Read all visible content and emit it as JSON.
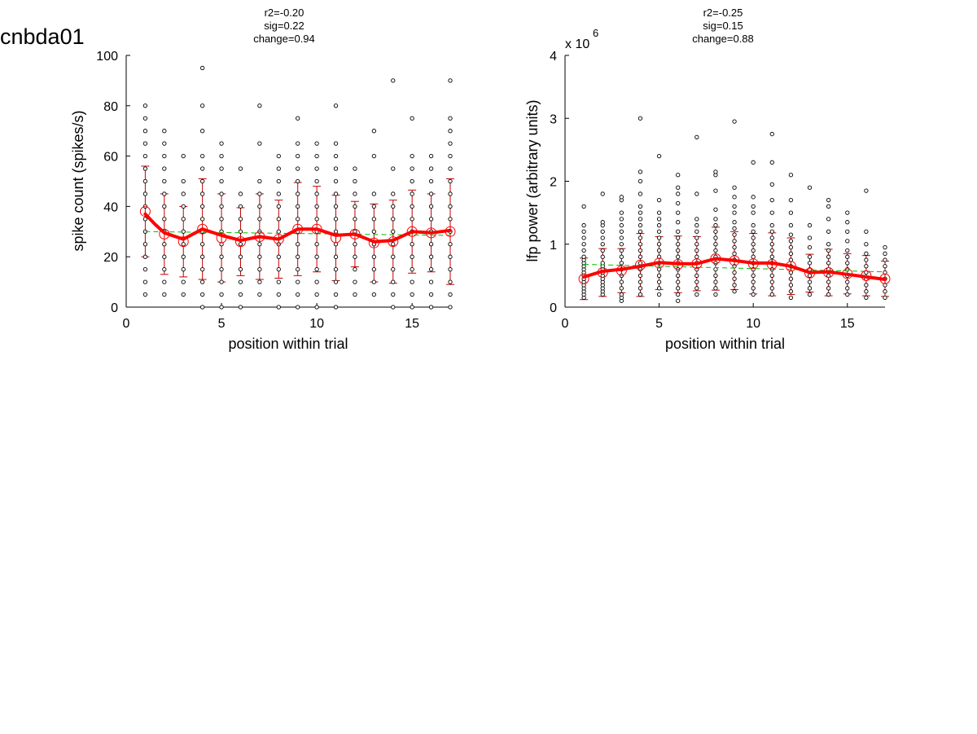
{
  "page": {
    "title": "cnbda01"
  },
  "chart_data": [
    {
      "type": "scatter",
      "stats": [
        "r2=-0.20",
        "sig=0.22",
        "change=0.94"
      ],
      "xlabel": "position within trial",
      "ylabel": "spike count (spikes/s)",
      "xlim": [
        0,
        17
      ],
      "ylim": [
        0,
        100
      ],
      "x_ticks": [
        0,
        5,
        10,
        15
      ],
      "y_ticks": [
        0,
        20,
        40,
        60,
        80,
        100
      ],
      "scale_exponent": "",
      "colors": {
        "points": "#000000",
        "mean": "#ff0000",
        "errorbar": "#c00000",
        "fit": "#00bb00"
      },
      "positions": [
        1,
        2,
        3,
        4,
        5,
        6,
        7,
        8,
        9,
        10,
        11,
        12,
        13,
        14,
        15,
        16,
        17
      ],
      "points": [
        [
          5,
          10,
          15,
          20,
          25,
          30,
          35,
          40,
          45,
          50,
          55,
          60,
          65,
          70,
          75,
          80
        ],
        [
          5,
          10,
          15,
          20,
          25,
          30,
          35,
          40,
          45,
          50,
          55,
          60,
          65,
          70
        ],
        [
          5,
          10,
          15,
          20,
          25,
          30,
          35,
          40,
          45,
          50,
          60
        ],
        [
          0,
          5,
          10,
          15,
          20,
          25,
          30,
          35,
          40,
          45,
          50,
          55,
          60,
          70,
          80,
          95
        ],
        [
          0,
          5,
          10,
          15,
          20,
          25,
          30,
          35,
          40,
          45,
          50,
          55,
          60,
          65
        ],
        [
          0,
          5,
          10,
          15,
          20,
          25,
          30,
          35,
          40,
          45,
          55
        ],
        [
          5,
          10,
          15,
          20,
          25,
          30,
          35,
          40,
          45,
          50,
          65,
          80
        ],
        [
          0,
          5,
          10,
          15,
          20,
          25,
          30,
          35,
          40,
          45,
          50,
          55,
          60
        ],
        [
          0,
          5,
          10,
          15,
          20,
          25,
          30,
          35,
          40,
          45,
          50,
          55,
          60,
          65,
          75
        ],
        [
          0,
          5,
          10,
          15,
          20,
          25,
          30,
          35,
          40,
          45,
          50,
          55,
          60,
          65
        ],
        [
          0,
          5,
          10,
          15,
          20,
          25,
          30,
          35,
          40,
          45,
          50,
          55,
          60,
          65,
          80
        ],
        [
          5,
          10,
          15,
          20,
          25,
          30,
          35,
          40,
          45,
          50,
          55
        ],
        [
          5,
          10,
          15,
          20,
          25,
          30,
          35,
          40,
          45,
          60,
          70
        ],
        [
          0,
          5,
          10,
          15,
          20,
          25,
          30,
          35,
          40,
          45,
          55,
          90
        ],
        [
          0,
          5,
          10,
          15,
          20,
          25,
          30,
          35,
          40,
          45,
          50,
          55,
          60,
          75
        ],
        [
          0,
          5,
          10,
          15,
          20,
          25,
          30,
          35,
          40,
          45,
          50,
          55,
          60
        ],
        [
          0,
          5,
          10,
          15,
          20,
          25,
          30,
          35,
          40,
          45,
          50,
          55,
          60,
          65,
          70,
          75,
          90
        ]
      ],
      "means": [
        38,
        29,
        26,
        31,
        27.5,
        26,
        28,
        27,
        31,
        31,
        27.5,
        29,
        25.5,
        26,
        30,
        29.5,
        30
      ],
      "errors": [
        18,
        16,
        14,
        20,
        17.5,
        13.5,
        17,
        15.5,
        18.5,
        17,
        17,
        13,
        15.5,
        16.5,
        16.5,
        15.5,
        21
      ],
      "smooth": [
        [
          1,
          37
        ],
        [
          1.5,
          33
        ],
        [
          2,
          29.5
        ],
        [
          3,
          27
        ],
        [
          4,
          31
        ],
        [
          5,
          28.5
        ],
        [
          6,
          26.5
        ],
        [
          7,
          28
        ],
        [
          8,
          27
        ],
        [
          9,
          31
        ],
        [
          10,
          31
        ],
        [
          11,
          28.5
        ],
        [
          12,
          29
        ],
        [
          13,
          26
        ],
        [
          14,
          26.5
        ],
        [
          15,
          30
        ],
        [
          16,
          29.5
        ],
        [
          17,
          30.5
        ]
      ],
      "fit": {
        "x": [
          1,
          17
        ],
        "y": [
          30,
          28.5
        ]
      }
    },
    {
      "type": "scatter",
      "stats": [
        "r2=-0.25",
        "sig=0.15",
        "change=0.88"
      ],
      "xlabel": "position within trial",
      "ylabel": "lfp power (arbitrary units)",
      "xlim": [
        0,
        17
      ],
      "ylim": [
        0,
        4
      ],
      "x_ticks": [
        0,
        5,
        10,
        15
      ],
      "y_ticks": [
        0,
        1,
        2,
        3,
        4
      ],
      "scale_exponent": "6",
      "scale_prefix": "x 10",
      "colors": {
        "points": "#000000",
        "mean": "#ff0000",
        "errorbar": "#c00000",
        "fit": "#00bb00"
      },
      "positions": [
        1,
        2,
        3,
        4,
        5,
        6,
        7,
        8,
        9,
        10,
        11,
        12,
        13,
        14,
        15,
        16,
        17
      ],
      "points": [
        [
          0.15,
          0.2,
          0.25,
          0.3,
          0.35,
          0.4,
          0.45,
          0.5,
          0.55,
          0.6,
          0.65,
          0.7,
          0.75,
          0.8,
          0.9,
          1.0,
          1.1,
          1.2,
          1.3,
          1.6
        ],
        [
          0.2,
          0.25,
          0.3,
          0.35,
          0.4,
          0.45,
          0.5,
          0.55,
          0.6,
          0.65,
          0.7,
          0.8,
          0.9,
          1.0,
          1.1,
          1.2,
          1.3,
          1.35,
          1.8
        ],
        [
          0.1,
          0.15,
          0.2,
          0.3,
          0.4,
          0.5,
          0.6,
          0.7,
          0.8,
          0.9,
          1.0,
          1.1,
          1.2,
          1.3,
          1.4,
          1.5,
          1.7,
          1.75
        ],
        [
          0.2,
          0.3,
          0.4,
          0.5,
          0.6,
          0.7,
          0.8,
          0.9,
          1.0,
          1.1,
          1.2,
          1.3,
          1.4,
          1.5,
          1.6,
          1.8,
          2.0,
          2.15,
          3.0
        ],
        [
          0.2,
          0.3,
          0.4,
          0.5,
          0.6,
          0.7,
          0.8,
          0.9,
          1.0,
          1.1,
          1.2,
          1.3,
          1.4,
          1.5,
          1.7,
          2.4
        ],
        [
          0.1,
          0.2,
          0.3,
          0.4,
          0.5,
          0.6,
          0.7,
          0.8,
          0.9,
          1.0,
          1.1,
          1.2,
          1.35,
          1.5,
          1.65,
          1.8,
          1.9,
          2.1
        ],
        [
          0.2,
          0.3,
          0.4,
          0.5,
          0.6,
          0.7,
          0.8,
          0.9,
          1.0,
          1.1,
          1.2,
          1.3,
          1.4,
          1.8,
          2.7
        ],
        [
          0.2,
          0.3,
          0.4,
          0.5,
          0.6,
          0.7,
          0.8,
          0.9,
          1.0,
          1.1,
          1.2,
          1.3,
          1.4,
          1.55,
          1.85,
          2.1,
          2.15
        ],
        [
          0.25,
          0.35,
          0.45,
          0.55,
          0.65,
          0.75,
          0.85,
          0.95,
          1.05,
          1.15,
          1.25,
          1.35,
          1.5,
          1.6,
          1.75,
          1.9,
          2.95
        ],
        [
          0.2,
          0.3,
          0.4,
          0.5,
          0.6,
          0.7,
          0.8,
          0.9,
          1.0,
          1.1,
          1.2,
          1.3,
          1.5,
          1.6,
          1.75,
          2.3
        ],
        [
          0.2,
          0.3,
          0.4,
          0.5,
          0.6,
          0.7,
          0.8,
          0.9,
          1.0,
          1.1,
          1.2,
          1.3,
          1.5,
          1.7,
          1.95,
          2.3,
          2.75
        ],
        [
          0.15,
          0.25,
          0.35,
          0.45,
          0.55,
          0.65,
          0.75,
          0.85,
          0.95,
          1.05,
          1.15,
          1.3,
          1.5,
          1.7,
          2.1
        ],
        [
          0.2,
          0.3,
          0.4,
          0.5,
          0.6,
          0.7,
          0.8,
          0.95,
          1.1,
          1.3,
          1.9
        ],
        [
          0.2,
          0.3,
          0.4,
          0.5,
          0.6,
          0.7,
          0.8,
          0.9,
          1.0,
          1.2,
          1.4,
          1.6,
          1.7
        ],
        [
          0.2,
          0.3,
          0.4,
          0.5,
          0.6,
          0.7,
          0.8,
          0.9,
          1.05,
          1.2,
          1.35,
          1.5
        ],
        [
          0.15,
          0.25,
          0.35,
          0.45,
          0.55,
          0.65,
          0.75,
          0.85,
          1.0,
          1.2,
          1.85
        ],
        [
          0.15,
          0.25,
          0.35,
          0.45,
          0.55,
          0.65,
          0.75,
          0.85,
          0.95
        ]
      ],
      "means": [
        0.45,
        0.55,
        0.58,
        0.67,
        0.7,
        0.68,
        0.69,
        0.77,
        0.74,
        0.69,
        0.68,
        0.65,
        0.54,
        0.55,
        0.53,
        0.5,
        0.45
      ],
      "errors": [
        0.33,
        0.38,
        0.35,
        0.5,
        0.42,
        0.45,
        0.43,
        0.5,
        0.46,
        0.48,
        0.5,
        0.45,
        0.3,
        0.37,
        0.32,
        0.32,
        0.28
      ],
      "smooth": [
        [
          1,
          0.48
        ],
        [
          2,
          0.57
        ],
        [
          3,
          0.6
        ],
        [
          4,
          0.65
        ],
        [
          5,
          0.71
        ],
        [
          6,
          0.69
        ],
        [
          7,
          0.69
        ],
        [
          8,
          0.77
        ],
        [
          9,
          0.74
        ],
        [
          10,
          0.7
        ],
        [
          11,
          0.7
        ],
        [
          12,
          0.65
        ],
        [
          13,
          0.55
        ],
        [
          14,
          0.56
        ],
        [
          15,
          0.52
        ],
        [
          16,
          0.48
        ],
        [
          17,
          0.44
        ]
      ],
      "fit": {
        "x": [
          1,
          17
        ],
        "y": [
          0.68,
          0.56
        ]
      }
    }
  ]
}
